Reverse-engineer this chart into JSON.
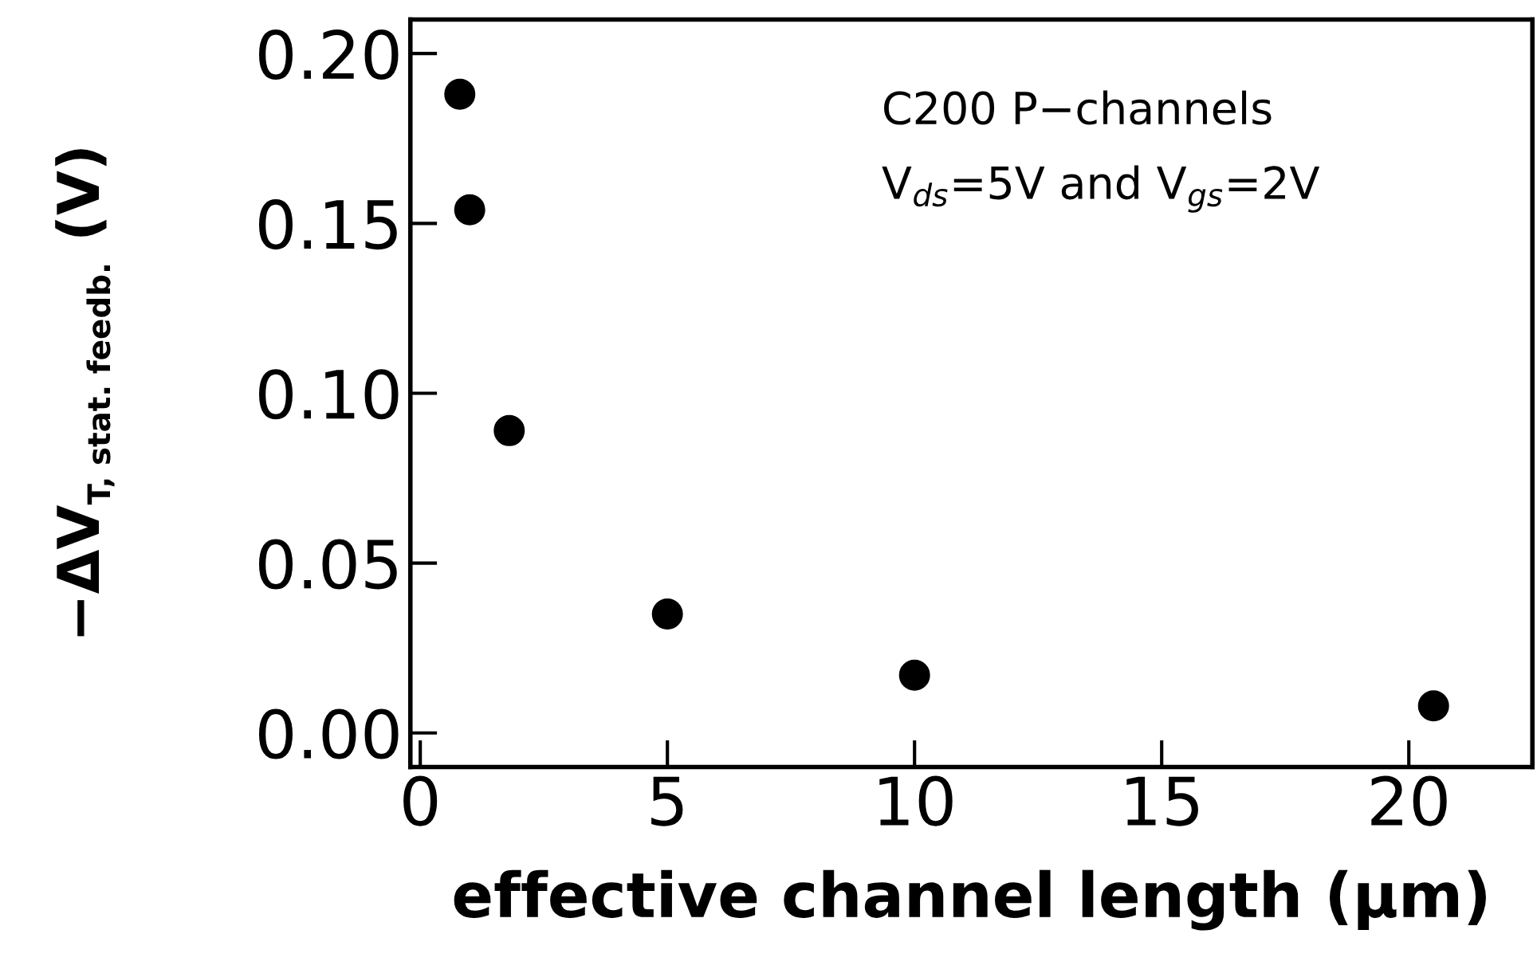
{
  "chart_data": {
    "type": "scatter",
    "xlabel": "effective channel length (μm)",
    "ylabel": "−ΔV$_{T, stat. feedb.}$ (V)",
    "annotations": [
      "C200 P−channels",
      "V$_{ds}$=5V and V$_{gs}$=2V"
    ],
    "x": [
      0.8,
      1.0,
      1.8,
      5.0,
      10.0,
      20.5
    ],
    "values": [
      0.188,
      0.154,
      0.089,
      0.035,
      0.017,
      0.008
    ],
    "color": "#000000",
    "marker": "circle",
    "xlim": [
      -0.2,
      22.5
    ],
    "ylim": [
      -0.01,
      0.21
    ],
    "xticks": [
      0,
      5,
      10,
      15,
      20
    ],
    "yticks": [
      {
        "value": 0,
        "label": "0.00"
      },
      {
        "value": 0.05,
        "label": "0.05"
      },
      {
        "value": 0.1,
        "label": "0.10"
      },
      {
        "value": 0.15,
        "label": "0.15"
      },
      {
        "value": 0.2,
        "label": "0.20"
      }
    ],
    "grid": false,
    "legend": false
  }
}
